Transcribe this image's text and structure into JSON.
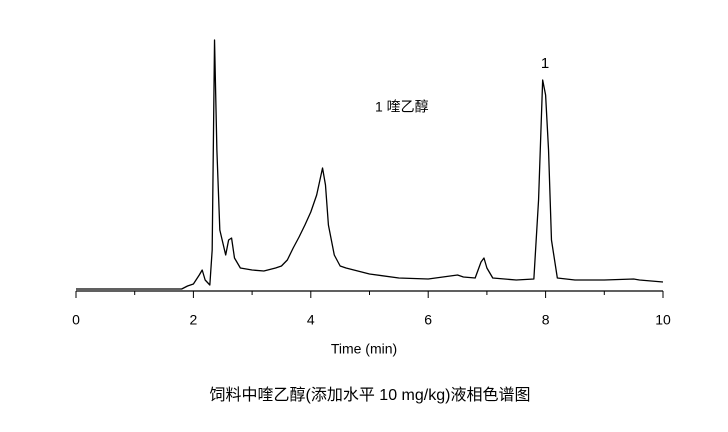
{
  "chart_data": {
    "type": "line",
    "caption": "饲料中喹乙醇(添加水平 10 mg/kg)液相色谱图",
    "xlabel": "Time (min)",
    "peak_label": "1",
    "annotation": "1 喹乙醇",
    "color": "#000000",
    "x": [
      0,
      1.8,
      1.9,
      2.0,
      2.1,
      2.15,
      2.2,
      2.28,
      2.32,
      2.36,
      2.4,
      2.45,
      2.55,
      2.6,
      2.65,
      2.7,
      2.8,
      3.0,
      3.2,
      3.4,
      3.5,
      3.6,
      3.7,
      3.8,
      3.9,
      4.0,
      4.1,
      4.2,
      4.25,
      4.3,
      4.4,
      4.5,
      4.6,
      5.0,
      5.5,
      6.0,
      6.5,
      6.6,
      6.8,
      6.9,
      6.95,
      7.0,
      7.1,
      7.5,
      7.8,
      7.88,
      7.95,
      8.0,
      8.05,
      8.1,
      8.2,
      8.5,
      9.0,
      9.5,
      9.6,
      10.0
    ],
    "values": [
      0.4,
      0.4,
      1.6,
      2.4,
      6,
      8,
      4,
      2,
      16,
      100,
      56,
      24,
      14,
      20,
      20.8,
      12.8,
      8.8,
      8,
      7.6,
      8.8,
      9.6,
      12,
      16.8,
      21.2,
      26,
      31.2,
      38,
      48.8,
      42,
      26,
      14,
      9.6,
      8.8,
      6.4,
      4.8,
      4.4,
      6,
      5.2,
      4.8,
      11.2,
      12.8,
      8.8,
      4.8,
      4,
      4.4,
      36,
      84,
      78,
      56,
      20,
      4.8,
      4,
      4,
      4.4,
      4,
      3.2
    ],
    "xlim": [
      0,
      10
    ],
    "xticks": [
      0,
      2,
      4,
      6,
      8,
      10
    ],
    "xminor_ticks": [
      1,
      3,
      5,
      7,
      9
    ],
    "ylim": [
      0,
      100
    ]
  }
}
